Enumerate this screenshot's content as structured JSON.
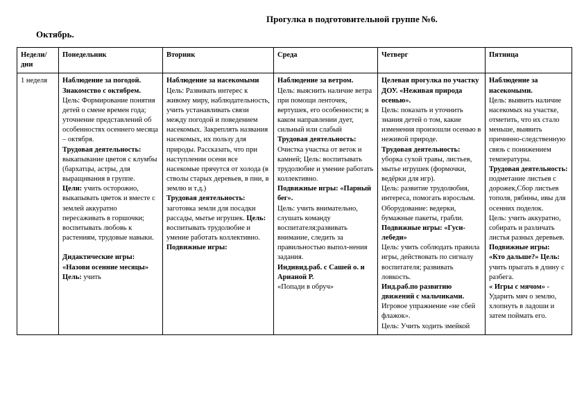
{
  "header": {
    "title": "Прогулка в подготовительной группе №6.",
    "month": "Октябрь."
  },
  "table": {
    "headers": {
      "c0": "Недели/ дни",
      "c1": "Понедельник",
      "c2": "Вторник",
      "c3": "Среда",
      "c4": "Четверг",
      "c5": "Пятница"
    },
    "week_label": "1 неделя",
    "mon": {
      "t1": "Наблюдение за погодой. Знакомство с октябрем.",
      "p1": "Цель: Формирование понятия детей о смене времен года; уточнение представлений об особенностях осеннего месяца – октября.",
      "t2": "Трудовая деятельность:",
      "p2": "выкапывание цветов с клумбы (бархатцы, астры, для выращивания в группе.",
      "t3": "Цели:",
      "p3": " учить осторожно, выкапывать цветок и вместе с землей аккуратно пересаживать в горшочки; воспитывать любовь к растениям, трудовые навыки.",
      "t4": "Дидактические игры: «Назови осенние месяцы» Цель:",
      "p4": " учить"
    },
    "tue": {
      "t1": " Наблюдение за насекомыми",
      "p1": "Цель: Развивать интерес к живому миру, наблюдательность, учить устанавливать связи между погодой и поведением насекомых. Закреплять названия насекомых, их пользу для природы. Рассказать, что при наступлении осени все насекомые прячутся от холода (в стволы старых деревьев, в пни, в землю и т.д.)",
      "t2": "Трудовая деятельность:",
      "p2": " заготовка земли для посадки рассады, мытье игрушек. ",
      "t3": "Цель:",
      "p3": " воспитывать трудолюбие и умение работать коллективно.",
      "t4": "Подвижные игры:"
    },
    "wed": {
      "t1": "Наблюдение за ветром.",
      "p1": "Цель: выяснить наличие ветра при помощи ленточек, вертушек, его особенности; в каком направлении дует, сильный или слабый",
      "t2": "Трудовая деятельность:",
      "p2": "Очистка участка от веток и камней; Цель: воспитывать трудолюбие и умение работать коллективно.",
      "t3": "Подвижные игры: «Парный бег».",
      "p3": "Цель: учить внимательно, слушать команду воспитателя;развивать внимание, следить за правильностью выпол-нения задания.",
      "t4": "Индивид.раб. с Сашей о. и Арианой Р.",
      "p4": "«Попади в обруч»"
    },
    "thu": {
      "t1": "Целевая прогулка по участку ДОУ. «Неживая природа осенью».",
      "p1": "Цель: показать и уточнить знания детей о том, какие изменения произошли осенью в неживой природе.",
      "t2": "Трудовая деятельность:",
      "p2": " уборка сухой травы, листьев, мытье игрушек (формочки, ведёрки для игр).",
      "p2b": "Цель: развитие трудолюбия, интереса, помогать взрослым.",
      "p2c": " Оборудование: ведерки, бумажные пакеты, грабли.",
      "t3": "Подвижные игры: «Гуси-лебеди»",
      "p3": "Цель: учить соблюдать правила игры, действовать по сигналу воспитателя; развивать ловкость.",
      "t4": "Инд.раб.по развитию движений с мальчиками.",
      "p4": " Игровое упражнение «не сбей флажок».",
      "p5": "Цель: Учить ходить змейкой"
    },
    "fri": {
      "t1": "Наблюдение за насекомыми.",
      "p1": "Цель: выявить наличие насекомых на участке, отметить, что их стало меньше, выявить причинно-следственную связь с понижением температуры.",
      "t2": "Трудовая деятельность:",
      "p2": " подметание листьев с дорожек,Сбор листьев тополя, рябины, ивы для осенних поделок.",
      "p2b": "Цель: учить аккуратно, собирать и различать листья разных деревьев.",
      "t3": "Подвижные игры:",
      "t3b": "«Кто дальше?» Цель:",
      "p3": " учить прыгать в длину с разбега.",
      "t4": " « Игры с мячом» ",
      "p4": "- Ударить мяч о землю, хлопнуть в ладоши и затем поймать его."
    }
  }
}
